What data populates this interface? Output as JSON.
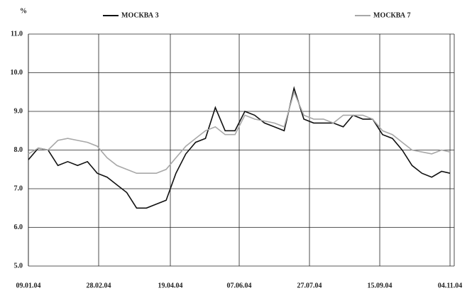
{
  "chart_data": {
    "type": "line",
    "y_label": "%",
    "x": [
      "09.01.04",
      "16.01.04",
      "23.01.04",
      "30.01.04",
      "06.02.04",
      "13.02.04",
      "20.02.04",
      "27.02.04",
      "05.03.04",
      "12.03.04",
      "19.03.04",
      "26.03.04",
      "02.04.04",
      "09.04.04",
      "16.04.04",
      "23.04.04",
      "30.04.04",
      "07.05.04",
      "14.05.04",
      "21.05.04",
      "28.05.04",
      "04.06.04",
      "11.06.04",
      "18.06.04",
      "25.06.04",
      "02.07.04",
      "09.07.04",
      "16.07.04",
      "23.07.04",
      "30.07.04",
      "06.08.04",
      "13.08.04",
      "20.08.04",
      "27.08.04",
      "03.09.04",
      "10.09.04",
      "17.09.04",
      "24.09.04",
      "01.10.04",
      "08.10.04",
      "15.10.04",
      "22.10.04",
      "29.10.04",
      "04.11.04"
    ],
    "series": [
      {
        "name": "МОСКВА 3",
        "color": "#111111",
        "values": [
          7.75,
          8.05,
          8.0,
          7.6,
          7.7,
          7.6,
          7.7,
          7.4,
          7.3,
          7.1,
          6.9,
          6.5,
          6.5,
          6.6,
          6.7,
          7.4,
          7.9,
          8.2,
          8.3,
          9.1,
          8.5,
          8.5,
          9.0,
          8.9,
          8.7,
          8.6,
          8.5,
          9.6,
          8.8,
          8.7,
          8.7,
          8.7,
          8.6,
          8.9,
          8.8,
          8.8,
          8.4,
          8.3,
          8.0,
          7.6,
          7.4,
          7.3,
          7.45,
          7.4
        ]
      },
      {
        "name": "МОСКВА 7",
        "color": "#a8a8a8",
        "values": [
          7.9,
          8.05,
          8.0,
          8.25,
          8.3,
          8.25,
          8.2,
          8.1,
          7.8,
          7.6,
          7.5,
          7.4,
          7.4,
          7.4,
          7.5,
          7.8,
          8.1,
          8.3,
          8.5,
          8.6,
          8.4,
          8.4,
          8.9,
          8.8,
          8.75,
          8.7,
          8.6,
          9.5,
          8.9,
          8.8,
          8.8,
          8.7,
          8.9,
          8.9,
          8.9,
          8.8,
          8.5,
          8.4,
          8.2,
          8.0,
          7.95,
          7.9,
          8.0,
          7.95
        ]
      }
    ],
    "xlim": [
      "09.01.04",
      "07.11.04"
    ],
    "xticks": [
      "09.01.04",
      "28.02.04",
      "19.04.04",
      "07.06.04",
      "27.07.04",
      "15.09.04",
      "04.11.04"
    ],
    "ylim": [
      5,
      11
    ],
    "yticks": [
      {
        "value": 5,
        "label": "5.0"
      },
      {
        "value": 6,
        "label": "6.0"
      },
      {
        "value": 7,
        "label": "7.0"
      },
      {
        "value": 8,
        "label": "8.0"
      },
      {
        "value": 9,
        "label": "9.0"
      },
      {
        "value": 10,
        "label": "10.0"
      },
      {
        "value": 11,
        "label": "11.0"
      }
    ],
    "grid": true
  }
}
